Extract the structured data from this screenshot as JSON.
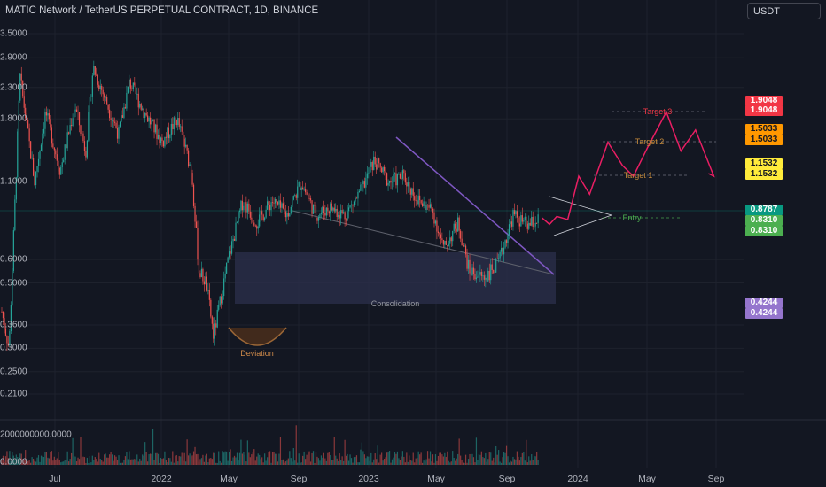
{
  "header": {
    "title": "MATIC Network / TetherUS PERPETUAL CONTRACT, 1D, BINANCE",
    "currency": "USDT"
  },
  "colors": {
    "background": "#131722",
    "up": "#26a69a",
    "down": "#ef5350",
    "trendline": "#7e57c2",
    "projection": "#e91e63",
    "target_line": "#787b86",
    "consolidation_box": "#2a2e4a"
  },
  "chart_data": {
    "type": "candlestick",
    "scale": "log",
    "x_ticks": [
      "Jul",
      "2022",
      "May",
      "Sep",
      "2023",
      "May",
      "Sep",
      "2024",
      "May",
      "Sep"
    ],
    "y_ticks": [
      "3.5000",
      "2.9000",
      "2.3000",
      "1.8000",
      "1.1000",
      "0.6000",
      "0.5000",
      "0.3600",
      "0.3000",
      "0.2500",
      "0.2100"
    ],
    "volume_ticks": [
      "2000000000.0000",
      "0.0000"
    ],
    "price_tags": [
      {
        "value": "1.9048",
        "color": "#f23645"
      },
      {
        "value": "1.9048",
        "color": "#f23645"
      },
      {
        "value": "1.5033",
        "color": "#ff9800"
      },
      {
        "value": "1.5033",
        "color": "#ff9800"
      },
      {
        "value": "1.1532",
        "color": "#ffeb3b"
      },
      {
        "value": "1.1532",
        "color": "#ffeb3b"
      },
      {
        "value": "0.8787",
        "color": "#089981"
      },
      {
        "value": "0.8310",
        "color": "#4caf50"
      },
      {
        "value": "0.8310",
        "color": "#4caf50"
      },
      {
        "value": "0.4244",
        "color": "#9575cd"
      },
      {
        "value": "0.4244",
        "color": "#9575cd"
      }
    ],
    "annotations": {
      "consolidation": "Consolidation",
      "deviation": "Deviation",
      "entry": "Entry",
      "target1": "Target 1",
      "target2": "Target 2",
      "target3": "Target 3"
    },
    "price_path": [
      [
        0.0,
        0.4
      ],
      [
        0.02,
        0.3
      ],
      [
        0.05,
        2.5
      ],
      [
        0.09,
        1.1
      ],
      [
        0.12,
        1.9
      ],
      [
        0.16,
        1.2
      ],
      [
        0.2,
        2.0
      ],
      [
        0.23,
        1.4
      ],
      [
        0.25,
        2.7
      ],
      [
        0.29,
        2.0
      ],
      [
        0.32,
        1.6
      ],
      [
        0.35,
        2.4
      ],
      [
        0.39,
        1.9
      ],
      [
        0.44,
        1.5
      ],
      [
        0.48,
        1.8
      ],
      [
        0.52,
        1.2
      ],
      [
        0.54,
        0.55
      ],
      [
        0.56,
        0.5
      ],
      [
        0.58,
        0.33
      ],
      [
        0.62,
        0.6
      ],
      [
        0.66,
        0.95
      ],
      [
        0.7,
        0.8
      ],
      [
        0.74,
        0.95
      ],
      [
        0.78,
        0.85
      ],
      [
        0.82,
        1.1
      ],
      [
        0.86,
        0.85
      ],
      [
        0.9,
        0.9
      ],
      [
        0.94,
        0.85
      ],
      [
        0.98,
        1.0
      ],
      [
        1.02,
        1.3
      ],
      [
        1.06,
        1.1
      ],
      [
        1.1,
        1.15
      ],
      [
        1.14,
        0.95
      ],
      [
        1.18,
        0.88
      ],
      [
        1.21,
        0.65
      ],
      [
        1.25,
        0.8
      ],
      [
        1.28,
        0.55
      ],
      [
        1.32,
        0.52
      ],
      [
        1.36,
        0.58
      ],
      [
        1.4,
        0.85
      ],
      [
        1.44,
        0.78
      ],
      [
        1.47,
        0.82
      ]
    ],
    "projection_path": [
      [
        1.48,
        0.83
      ],
      [
        1.5,
        0.79
      ],
      [
        1.52,
        0.84
      ],
      [
        1.55,
        0.82
      ],
      [
        1.58,
        1.15
      ],
      [
        1.61,
        1.0
      ],
      [
        1.66,
        1.5
      ],
      [
        1.7,
        1.25
      ],
      [
        1.73,
        1.15
      ],
      [
        1.77,
        1.45
      ],
      [
        1.82,
        1.9
      ],
      [
        1.86,
        1.4
      ],
      [
        1.9,
        1.65
      ],
      [
        1.95,
        1.15
      ]
    ]
  }
}
